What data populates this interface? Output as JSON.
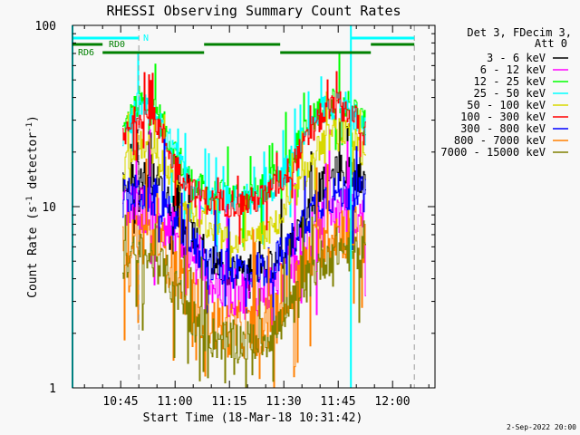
{
  "chart_data": {
    "type": "line",
    "title": "RHESSI Observing Summary Count Rates",
    "xlabel": "Start Time (18-Mar-18 10:31:42)",
    "ylabel": "Count Rate (s",
    "ylabel_sup1": "-1",
    "ylabel_mid": " detector",
    "ylabel_sup2": "-1",
    "ylabel_end": ")",
    "y_scale": "log",
    "ylim": [
      1,
      100
    ],
    "xlim": [
      "10:31:42",
      "12:11:42"
    ],
    "y_ticks": [
      "100",
      "10",
      "1"
    ],
    "x_ticks": [
      "10:45",
      "11:00",
      "11:15",
      "11:30",
      "11:45",
      "12:00"
    ],
    "legend_header": [
      "Det 3, FDecim 3,",
      "Att 0"
    ],
    "legend_position": "right",
    "footer": "2-Sep-2022 20:00",
    "x": [
      "10:45:30",
      "10:50",
      "10:55",
      "11:00",
      "11:05",
      "11:10",
      "11:15",
      "11:20",
      "11:25",
      "11:30",
      "11:35",
      "11:40",
      "11:45",
      "11:50",
      "11:52:30"
    ],
    "series": [
      {
        "name": "3 - 6 keV",
        "color": "#000000",
        "noise": 0.09,
        "values": [
          13,
          15,
          14,
          10,
          7,
          5,
          4.5,
          4.5,
          4.6,
          5.5,
          8,
          13,
          16,
          15,
          14
        ]
      },
      {
        "name": "6 - 12 keV",
        "color": "#ff00ff",
        "noise": 0.14,
        "values": [
          9,
          10,
          9,
          7,
          5,
          3.8,
          3.3,
          3.3,
          3.5,
          4,
          6,
          8,
          9.5,
          9,
          8
        ]
      },
      {
        "name": "12 - 25 keV",
        "color": "#00ff00",
        "noise": 0.09,
        "values": [
          26,
          38,
          33,
          20,
          13,
          11.5,
          11.5,
          11.5,
          12.5,
          16,
          24,
          35,
          41,
          33,
          27
        ]
      },
      {
        "name": "25 - 50 keV",
        "color": "#00ffff",
        "noise": 0.09,
        "values": [
          25,
          36,
          31,
          19,
          12.5,
          11,
          11,
          11,
          12,
          15,
          23,
          33,
          39,
          31,
          26
        ]
      },
      {
        "name": "50 - 100 keV",
        "color": "#d8d800",
        "noise": 0.08,
        "values": [
          17,
          22,
          20,
          13,
          9,
          7,
          6.5,
          6.5,
          7,
          9,
          14,
          22,
          27,
          22,
          18
        ]
      },
      {
        "name": "100 - 300 keV",
        "color": "#ff0000",
        "noise": 0.08,
        "values": [
          23,
          33,
          29,
          17,
          12,
          10.5,
          10.5,
          10.5,
          11.5,
          14.5,
          21,
          31,
          37,
          30,
          25
        ]
      },
      {
        "name": "300 - 800 keV",
        "color": "#0000ff",
        "noise": 0.11,
        "values": [
          11,
          12,
          11,
          8,
          6,
          4.8,
          4.5,
          4.5,
          4.6,
          5.5,
          8,
          11,
          12,
          12,
          11
        ]
      },
      {
        "name": "800 - 7000 keV",
        "color": "#ff8000",
        "noise": 0.16,
        "values": [
          6.5,
          7,
          6.5,
          4.5,
          3,
          2.3,
          2.1,
          2.1,
          2.2,
          2.8,
          4.5,
          6.5,
          7.5,
          7,
          6.5
        ]
      },
      {
        "name": "7000 - 15000 keV",
        "color": "#808000",
        "noise": 0.12,
        "values": [
          5,
          5.5,
          5,
          3.5,
          2.4,
          1.9,
          1.8,
          1.8,
          1.9,
          2.3,
          3.5,
          5,
          6,
          5.5,
          5
        ]
      }
    ],
    "annotations": {
      "night_label": "N",
      "rd0_label": "RD0",
      "rd6_label": "RD6",
      "night_intervals": [
        [
          "10:31:42",
          "10:50"
        ],
        [
          "11:48:30",
          "12:06"
        ]
      ],
      "rd0_intervals": [
        [
          "10:31:42",
          "10:40"
        ],
        [
          "11:08",
          "11:29"
        ],
        [
          "11:54",
          "12:06"
        ]
      ],
      "rd6_intervals": [
        [
          "10:40",
          "11:08"
        ],
        [
          "11:29",
          "11:54"
        ]
      ],
      "saa_lines": [
        "10:31:42",
        "11:48:30"
      ],
      "dashed_lines": [
        "10:50",
        "12:06"
      ]
    }
  }
}
